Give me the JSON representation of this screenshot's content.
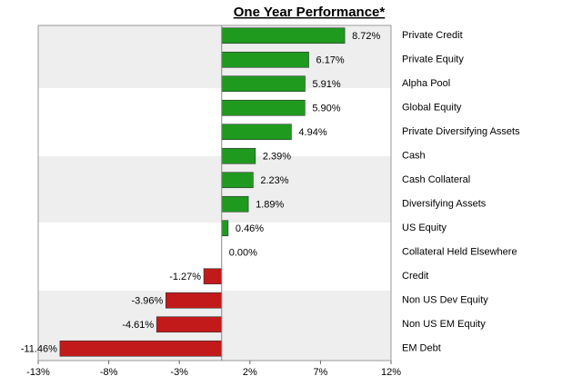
{
  "chart_data": {
    "type": "barh",
    "title": "One Year Performance*",
    "categories": [
      "Private Credit",
      "Private Equity",
      "Alpha Pool",
      "Global Equity",
      "Private Diversifying Assets",
      "Cash",
      "Cash Collateral",
      "Diversifying Assets",
      "US Equity",
      "Collateral Held Elsewhere",
      "Credit",
      "Non US Dev Equity",
      "Non US EM Equity",
      "EM Debt"
    ],
    "values": [
      8.72,
      6.17,
      5.91,
      5.9,
      4.94,
      2.39,
      2.23,
      1.89,
      0.46,
      0.0,
      -1.27,
      -3.96,
      -4.61,
      -11.46
    ],
    "value_labels": [
      "8.72%",
      "6.17%",
      "5.91%",
      "5.90%",
      "4.94%",
      "2.39%",
      "2.23%",
      "1.89%",
      "0.46%",
      "0.00%",
      "-1.27%",
      "-3.96%",
      "-4.61%",
      "-11.46%"
    ],
    "colors": [
      "#1f9a1f",
      "#1f9a1f",
      "#1f9a1f",
      "#1f9a1f",
      "#1f9a1f",
      "#1f9a1f",
      "#1f9a1f",
      "#1f9a1f",
      "#1f9a1f",
      "#1f9a1f",
      "#c21a1a",
      "#c21a1a",
      "#c21a1a",
      "#c21a1a"
    ],
    "xlim": [
      -13,
      12
    ],
    "xticks": [
      {
        "value": -13,
        "label": "-13%"
      },
      {
        "value": -8,
        "label": "-8%"
      },
      {
        "value": -3,
        "label": "-3%"
      },
      {
        "value": 2,
        "label": "2%"
      },
      {
        "value": 7,
        "label": "7%"
      },
      {
        "value": 12,
        "label": "12%"
      }
    ]
  }
}
